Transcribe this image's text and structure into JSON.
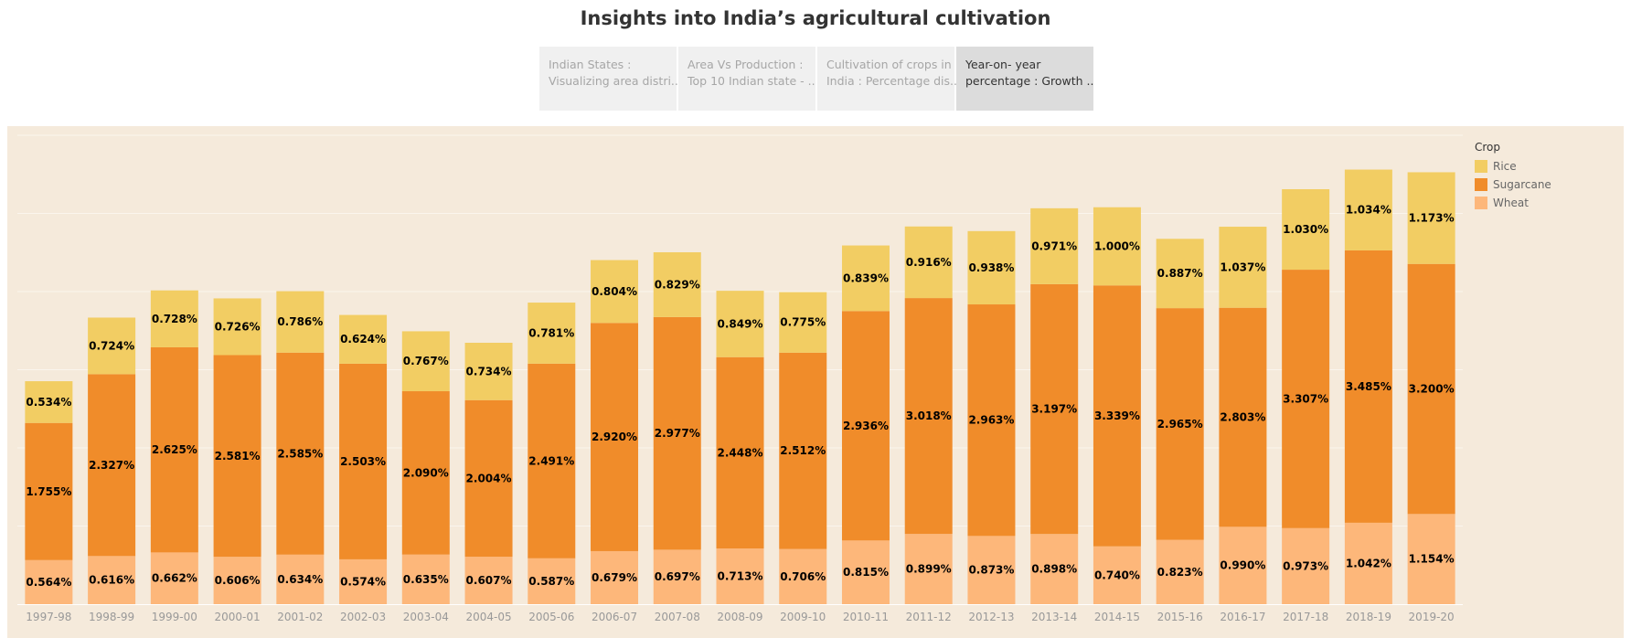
{
  "header": {
    "title": "Insights into India’s agricultural cultivation"
  },
  "tabs": [
    {
      "line1": "Indian States :",
      "line2": "Visualizing area distri..",
      "active": false
    },
    {
      "line1": "Area Vs Production :",
      "line2": "Top 10 Indian state - ..",
      "active": false
    },
    {
      "line1": "Cultivation of crops in",
      "line2": "India : Percentage dis..",
      "active": false
    },
    {
      "line1": "Year-on- year",
      "line2": "percentage : Growth ..",
      "active": true
    }
  ],
  "legend": {
    "title": "Crop",
    "items": [
      {
        "label": "Rice",
        "color": "#f2cd63"
      },
      {
        "label": "Sugarcane",
        "color": "#f08c2a"
      },
      {
        "label": "Wheat",
        "color": "#fdb77a"
      }
    ]
  },
  "chart_data": {
    "type": "bar",
    "stacked": true,
    "categories": [
      "1997-98",
      "1998-99",
      "1999-00",
      "2000-01",
      "2001-02",
      "2002-03",
      "2003-04",
      "2004-05",
      "2005-06",
      "2006-07",
      "2007-08",
      "2008-09",
      "2009-10",
      "2010-11",
      "2011-12",
      "2012-13",
      "2013-14",
      "2014-15",
      "2015-16",
      "2016-17",
      "2017-18",
      "2018-19",
      "2019-20"
    ],
    "series": [
      {
        "name": "Wheat",
        "color": "#fdb77a",
        "values": [
          0.564,
          0.616,
          0.662,
          0.606,
          0.634,
          0.574,
          0.635,
          0.607,
          0.587,
          0.679,
          0.697,
          0.713,
          0.706,
          0.815,
          0.899,
          0.873,
          0.898,
          0.74,
          0.823,
          0.99,
          0.973,
          1.042,
          1.154
        ],
        "labels": [
          "0.564%",
          "0.616%",
          "0.662%",
          "0.606%",
          "0.634%",
          "0.574%",
          "0.635%",
          "0.607%",
          "0.587%",
          "0.679%",
          "0.697%",
          "0.713%",
          "0.706%",
          "0.815%",
          "0.899%",
          "0.873%",
          "0.898%",
          "0.740%",
          "0.823%",
          "0.990%",
          "0.973%",
          "1.042%",
          "1.154%"
        ]
      },
      {
        "name": "Sugarcane",
        "color": "#f08c2a",
        "values": [
          1.755,
          2.327,
          2.625,
          2.581,
          2.585,
          2.503,
          2.09,
          2.004,
          2.491,
          2.92,
          2.977,
          2.448,
          2.512,
          2.936,
          3.018,
          2.963,
          3.197,
          3.339,
          2.965,
          2.803,
          3.307,
          3.485,
          3.2
        ],
        "labels": [
          "1.755%",
          "2.327%",
          "2.625%",
          "2.581%",
          "2.585%",
          "2.503%",
          "2.090%",
          "2.004%",
          "2.491%",
          "2.920%",
          "2.977%",
          "2.448%",
          "2.512%",
          "2.936%",
          "3.018%",
          "2.963%",
          "3.197%",
          "3.339%",
          "2.965%",
          "2.803%",
          "3.307%",
          "3.485%",
          "3.200%"
        ]
      },
      {
        "name": "Rice",
        "color": "#f2cd63",
        "values": [
          0.534,
          0.724,
          0.728,
          0.726,
          0.786,
          0.624,
          0.767,
          0.734,
          0.781,
          0.804,
          0.829,
          0.849,
          0.775,
          0.839,
          0.916,
          0.938,
          0.971,
          1.0,
          0.887,
          1.037,
          1.03,
          1.034,
          1.173
        ],
        "labels": [
          "0.534%",
          "0.724%",
          "0.728%",
          "0.726%",
          "0.786%",
          "0.624%",
          "0.767%",
          "0.734%",
          "0.781%",
          "0.804%",
          "0.829%",
          "0.849%",
          "0.775%",
          "0.839%",
          "0.916%",
          "0.938%",
          "0.971%",
          "1.000%",
          "0.887%",
          "1.037%",
          "1.030%",
          "1.034%",
          "1.173%"
        ]
      }
    ],
    "ylim": [
      0,
      6.0
    ],
    "grid": true,
    "legend_position": "right"
  }
}
